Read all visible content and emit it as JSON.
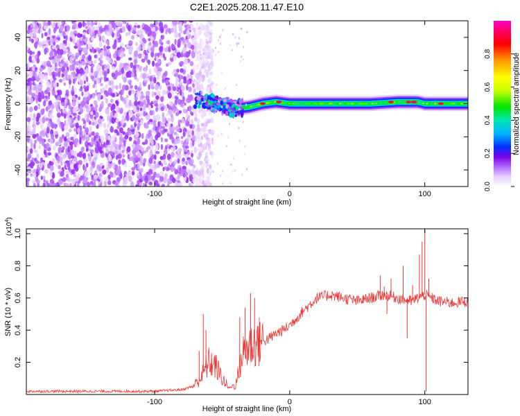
{
  "figure_title": "C2E1.2025.208.11.47.E10",
  "chart_data": [
    {
      "type": "heatmap",
      "title": "",
      "xlabel": "Height of straight line (km)",
      "ylabel": "Frequency (Hz)",
      "xlim": [
        -195,
        132
      ],
      "ylim": [
        -50,
        50
      ],
      "x_ticks": [
        -100,
        0,
        100
      ],
      "y_ticks": [
        -40,
        -20,
        0,
        20,
        40
      ],
      "colorbar": {
        "label": "Normalized spectral amplitude",
        "range": [
          0,
          1
        ],
        "ticks": [
          0.0,
          0.2,
          0.4,
          0.6,
          0.8
        ],
        "colormap": [
          "#ffffff",
          "#e5ccff",
          "#b266ff",
          "#7a00e6",
          "#0033ff",
          "#00b3ff",
          "#00e6b3",
          "#00e600",
          "#ccff00",
          "#ffff00",
          "#ff9900",
          "#ff0000",
          "#ff0066",
          "#ff00cc"
        ]
      },
      "regions": [
        {
          "name": "noise",
          "x_range": [
            -195,
            -65
          ],
          "freq_range": [
            -50,
            50
          ],
          "amplitude": [
            0.05,
            0.2
          ]
        },
        {
          "name": "transition",
          "x_range": [
            -70,
            -35
          ],
          "freq_center": 0,
          "amplitude": [
            0.1,
            0.45
          ]
        },
        {
          "name": "signal band",
          "x_range": [
            -35,
            132
          ],
          "freq_center": 1,
          "freq_halfwidth": 3,
          "amplitude": [
            0.4,
            0.95
          ]
        }
      ],
      "signal_band": [
        {
          "x": -70,
          "f": 3
        },
        {
          "x": -60,
          "f": 1
        },
        {
          "x": -50,
          "f": -1
        },
        {
          "x": -40,
          "f": -3
        },
        {
          "x": -30,
          "f": -2
        },
        {
          "x": -20,
          "f": 0
        },
        {
          "x": -10,
          "f": 1
        },
        {
          "x": 0,
          "f": 0
        },
        {
          "x": 20,
          "f": 0
        },
        {
          "x": 40,
          "f": 0
        },
        {
          "x": 60,
          "f": 0
        },
        {
          "x": 80,
          "f": 1
        },
        {
          "x": 95,
          "f": 1
        },
        {
          "x": 100,
          "f": 0
        },
        {
          "x": 120,
          "f": 0
        },
        {
          "x": 132,
          "f": 0
        }
      ],
      "hotspots": [
        {
          "x": -20,
          "f": 0
        },
        {
          "x": -8,
          "f": 1
        },
        {
          "x": 75,
          "f": 1
        },
        {
          "x": 88,
          "f": 1
        },
        {
          "x": 92,
          "f": 1
        },
        {
          "x": 112,
          "f": 0
        }
      ]
    },
    {
      "type": "line",
      "title": "",
      "xlabel": "Height of straight line (km)",
      "ylabel": "SNR (10 * v/v)",
      "y_multiplier_label": "(x10",
      "y_multiplier_exp": "4",
      "y_multiplier_close": ")",
      "xlim": [
        -195,
        132
      ],
      "ylim": [
        0,
        1.03
      ],
      "x_ticks": [
        -100,
        0,
        100
      ],
      "y_ticks": [
        0.2,
        0.4,
        0.6,
        0.8,
        1.0
      ],
      "series": [
        {
          "color": "#ee3333",
          "x": [
            -195,
            -150,
            -100,
            -80,
            -72,
            -66,
            -60,
            -55,
            -50,
            -45,
            -40,
            -35,
            -30,
            -25,
            -20,
            -15,
            -10,
            -5,
            0,
            10,
            20,
            30,
            40,
            50,
            60,
            70,
            80,
            90,
            95,
            100,
            110,
            120,
            132
          ],
          "y": [
            0.02,
            0.02,
            0.02,
            0.03,
            0.05,
            0.1,
            0.2,
            0.18,
            0.1,
            0.04,
            0.06,
            0.25,
            0.3,
            0.32,
            0.33,
            0.35,
            0.38,
            0.4,
            0.43,
            0.52,
            0.6,
            0.62,
            0.6,
            0.58,
            0.6,
            0.62,
            0.6,
            0.58,
            0.6,
            0.62,
            0.58,
            0.57,
            0.58
          ]
        }
      ],
      "spikes": [
        {
          "x": -67,
          "y": 0.27
        },
        {
          "x": -64,
          "y": 0.5
        },
        {
          "x": -62,
          "y": 0.4
        },
        {
          "x": -37,
          "y": 0.48
        },
        {
          "x": -33,
          "y": 0.54
        },
        {
          "x": -29,
          "y": 0.63
        },
        {
          "x": -26,
          "y": 0.6
        },
        {
          "x": -22,
          "y": 0.45
        },
        {
          "x": 67,
          "y": 0.74
        },
        {
          "x": 70,
          "y": 0.67
        },
        {
          "x": 72,
          "y": 0.5
        },
        {
          "x": 75,
          "y": 0.72
        },
        {
          "x": 84,
          "y": 0.8
        },
        {
          "x": 87,
          "y": 0.35
        },
        {
          "x": 91,
          "y": 0.68
        },
        {
          "x": 96,
          "y": 0.87
        },
        {
          "x": 98,
          "y": 0.95
        },
        {
          "x": 100,
          "y": 1.03
        },
        {
          "x": 101,
          "y": 0.02
        },
        {
          "x": 103,
          "y": 0.72
        }
      ]
    }
  ]
}
